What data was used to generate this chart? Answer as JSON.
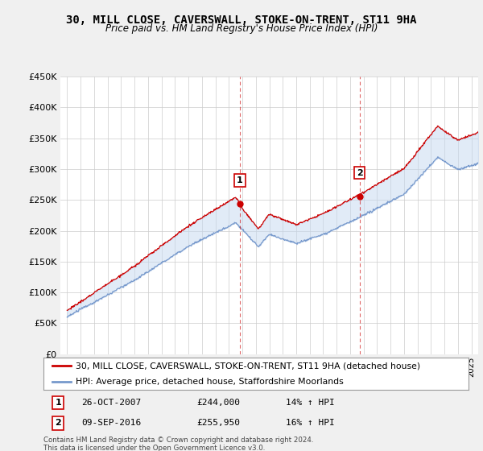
{
  "title": "30, MILL CLOSE, CAVERSWALL, STOKE-ON-TRENT, ST11 9HA",
  "subtitle": "Price paid vs. HM Land Registry's House Price Index (HPI)",
  "ylim": [
    0,
    450000
  ],
  "yticks": [
    0,
    50000,
    100000,
    150000,
    200000,
    250000,
    300000,
    350000,
    400000,
    450000
  ],
  "xlim_start": 1994.5,
  "xlim_end": 2025.5,
  "red_color": "#cc0000",
  "blue_color": "#7799cc",
  "fill_color": "#c5d8f0",
  "marker1_x": 2007.82,
  "marker1_y": 244000,
  "marker2_x": 2016.69,
  "marker2_y": 255950,
  "legend_entries": [
    "30, MILL CLOSE, CAVERSWALL, STOKE-ON-TRENT, ST11 9HA (detached house)",
    "HPI: Average price, detached house, Staffordshire Moorlands"
  ],
  "table_rows": [
    [
      "1",
      "26-OCT-2007",
      "£244,000",
      "14% ↑ HPI"
    ],
    [
      "2",
      "09-SEP-2016",
      "£255,950",
      "16% ↑ HPI"
    ]
  ],
  "footnote": "Contains HM Land Registry data © Crown copyright and database right 2024.\nThis data is licensed under the Open Government Licence v3.0.",
  "fig_bg_color": "#f0f0f0",
  "plot_bg_color": "#ffffff",
  "grid_color": "#cccccc"
}
